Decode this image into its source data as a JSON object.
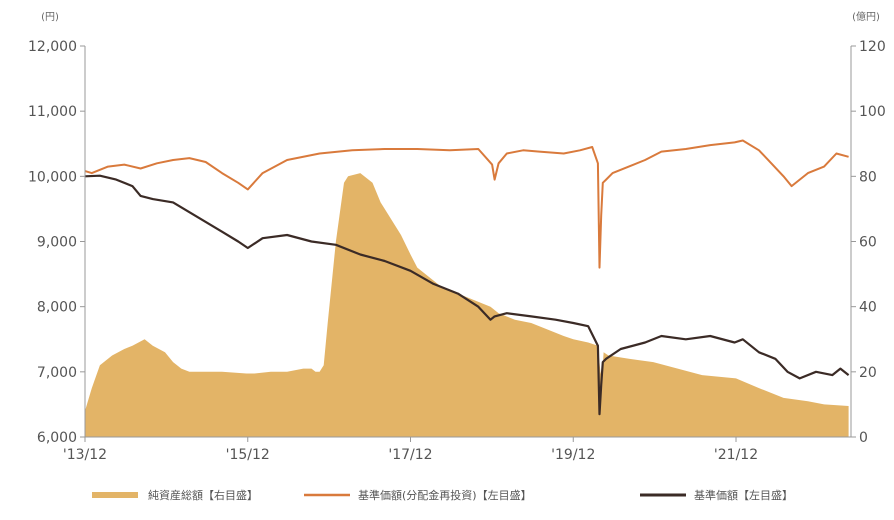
{
  "chart_data": {
    "type": "line",
    "left_axis": {
      "unit": "(円)",
      "ylim": [
        6000,
        12000
      ],
      "ticks": [
        "6,000",
        "7,000",
        "8,000",
        "9,000",
        "10,000",
        "11,000",
        "12,000"
      ],
      "tick_values": [
        6000,
        7000,
        8000,
        9000,
        10000,
        11000,
        12000
      ]
    },
    "right_axis": {
      "unit": "(億円)",
      "ylim": [
        0,
        120
      ],
      "ticks": [
        "0",
        "20",
        "40",
        "60",
        "80",
        "100",
        "120"
      ],
      "tick_values": [
        0,
        20,
        40,
        60,
        80,
        100,
        120
      ]
    },
    "x_axis": {
      "range": [
        2013.917,
        2023.33
      ],
      "ticks": [
        "'13/12",
        "'15/12",
        "'17/12",
        "'19/12",
        "'21/12"
      ],
      "tick_values": [
        2013.917,
        2015.917,
        2017.917,
        2019.917,
        2021.917
      ]
    },
    "grid": false,
    "legend_position": "bottom",
    "colors": {
      "net_assets": "#e3b467",
      "nav_reinvested": "#d97a3c",
      "nav": "#3b2b26",
      "axis": "#999999"
    },
    "series": [
      {
        "key": "net_assets",
        "name": "純資産総額【右目盛】",
        "type": "area",
        "axis": "right",
        "x": [
          2013.917,
          2014.0,
          2014.1,
          2014.25,
          2014.4,
          2014.5,
          2014.65,
          2014.75,
          2014.9,
          2015.0,
          2015.1,
          2015.2,
          2015.4,
          2015.6,
          2015.9,
          2016.0,
          2016.2,
          2016.4,
          2016.6,
          2016.7,
          2016.75,
          2016.8,
          2016.85,
          2016.9,
          2017.0,
          2017.1,
          2017.15,
          2017.3,
          2017.45,
          2017.55,
          2017.6,
          2017.8,
          2017.917,
          2018.0,
          2018.3,
          2018.6,
          2018.9,
          2019.0,
          2019.2,
          2019.4,
          2019.6,
          2019.8,
          2019.917,
          2020.1,
          2020.22,
          2020.25,
          2020.27,
          2020.29,
          2020.35,
          2020.6,
          2020.9,
          2021.2,
          2021.5,
          2021.917,
          2022.2,
          2022.5,
          2022.8,
          2023.0,
          2023.3
        ],
        "values": [
          8,
          15,
          22,
          25,
          27,
          28,
          30,
          28,
          26,
          23,
          21,
          20,
          20,
          20,
          19.5,
          19.5,
          20,
          20,
          21,
          21,
          20,
          20,
          22,
          35,
          60,
          78,
          80,
          81,
          78,
          72,
          70,
          62,
          56,
          52,
          46,
          43,
          40,
          38,
          36,
          35,
          33,
          31,
          30,
          29,
          28,
          20,
          18,
          26,
          25,
          24,
          23,
          21,
          19,
          18,
          15,
          12,
          11,
          10,
          9.5
        ]
      },
      {
        "key": "nav_reinvested",
        "name": "基準価額(分配金再投資)【左目盛】",
        "type": "line",
        "axis": "left",
        "x": [
          2013.917,
          2014.0,
          2014.2,
          2014.4,
          2014.6,
          2014.8,
          2015.0,
          2015.2,
          2015.4,
          2015.6,
          2015.8,
          2015.917,
          2016.1,
          2016.4,
          2016.8,
          2017.2,
          2017.6,
          2018.0,
          2018.4,
          2018.75,
          2018.92,
          2018.95,
          2019.0,
          2019.1,
          2019.3,
          2019.5,
          2019.8,
          2020.0,
          2020.15,
          2020.22,
          2020.24,
          2020.26,
          2020.28,
          2020.32,
          2020.4,
          2020.6,
          2020.8,
          2021.0,
          2021.3,
          2021.6,
          2021.9,
          2022.0,
          2022.2,
          2022.35,
          2022.5,
          2022.6,
          2022.8,
          2023.0,
          2023.15,
          2023.3
        ],
        "values": [
          10080,
          10050,
          10150,
          10180,
          10120,
          10200,
          10250,
          10280,
          10220,
          10050,
          9900,
          9800,
          10050,
          10250,
          10350,
          10400,
          10420,
          10420,
          10400,
          10420,
          10180,
          9950,
          10200,
          10350,
          10400,
          10380,
          10350,
          10400,
          10450,
          10200,
          8600,
          9400,
          9900,
          9950,
          10050,
          10150,
          10250,
          10380,
          10420,
          10480,
          10520,
          10550,
          10400,
          10200,
          10000,
          9850,
          10050,
          10150,
          10350,
          10300
        ]
      },
      {
        "key": "nav",
        "name": "基準価額【左目盛】",
        "type": "line",
        "axis": "left",
        "x": [
          2013.917,
          2014.1,
          2014.3,
          2014.5,
          2014.6,
          2014.75,
          2015.0,
          2015.2,
          2015.4,
          2015.6,
          2015.8,
          2015.917,
          2016.1,
          2016.4,
          2016.7,
          2017.0,
          2017.3,
          2017.6,
          2017.917,
          2018.2,
          2018.5,
          2018.75,
          2018.9,
          2018.95,
          2019.1,
          2019.4,
          2019.7,
          2019.917,
          2020.1,
          2020.22,
          2020.24,
          2020.26,
          2020.28,
          2020.32,
          2020.5,
          2020.8,
          2021.0,
          2021.3,
          2021.6,
          2021.9,
          2022.0,
          2022.2,
          2022.4,
          2022.55,
          2022.7,
          2022.9,
          2023.1,
          2023.2,
          2023.3
        ],
        "values": [
          10000,
          10010,
          9950,
          9850,
          9700,
          9650,
          9600,
          9450,
          9300,
          9150,
          9000,
          8900,
          9050,
          9100,
          9000,
          8950,
          8800,
          8700,
          8550,
          8350,
          8200,
          8000,
          7800,
          7850,
          7900,
          7850,
          7800,
          7750,
          7700,
          7400,
          6350,
          6800,
          7150,
          7200,
          7350,
          7450,
          7550,
          7500,
          7550,
          7450,
          7500,
          7300,
          7200,
          7000,
          6900,
          7000,
          6950,
          7050,
          6950
        ]
      }
    ]
  }
}
